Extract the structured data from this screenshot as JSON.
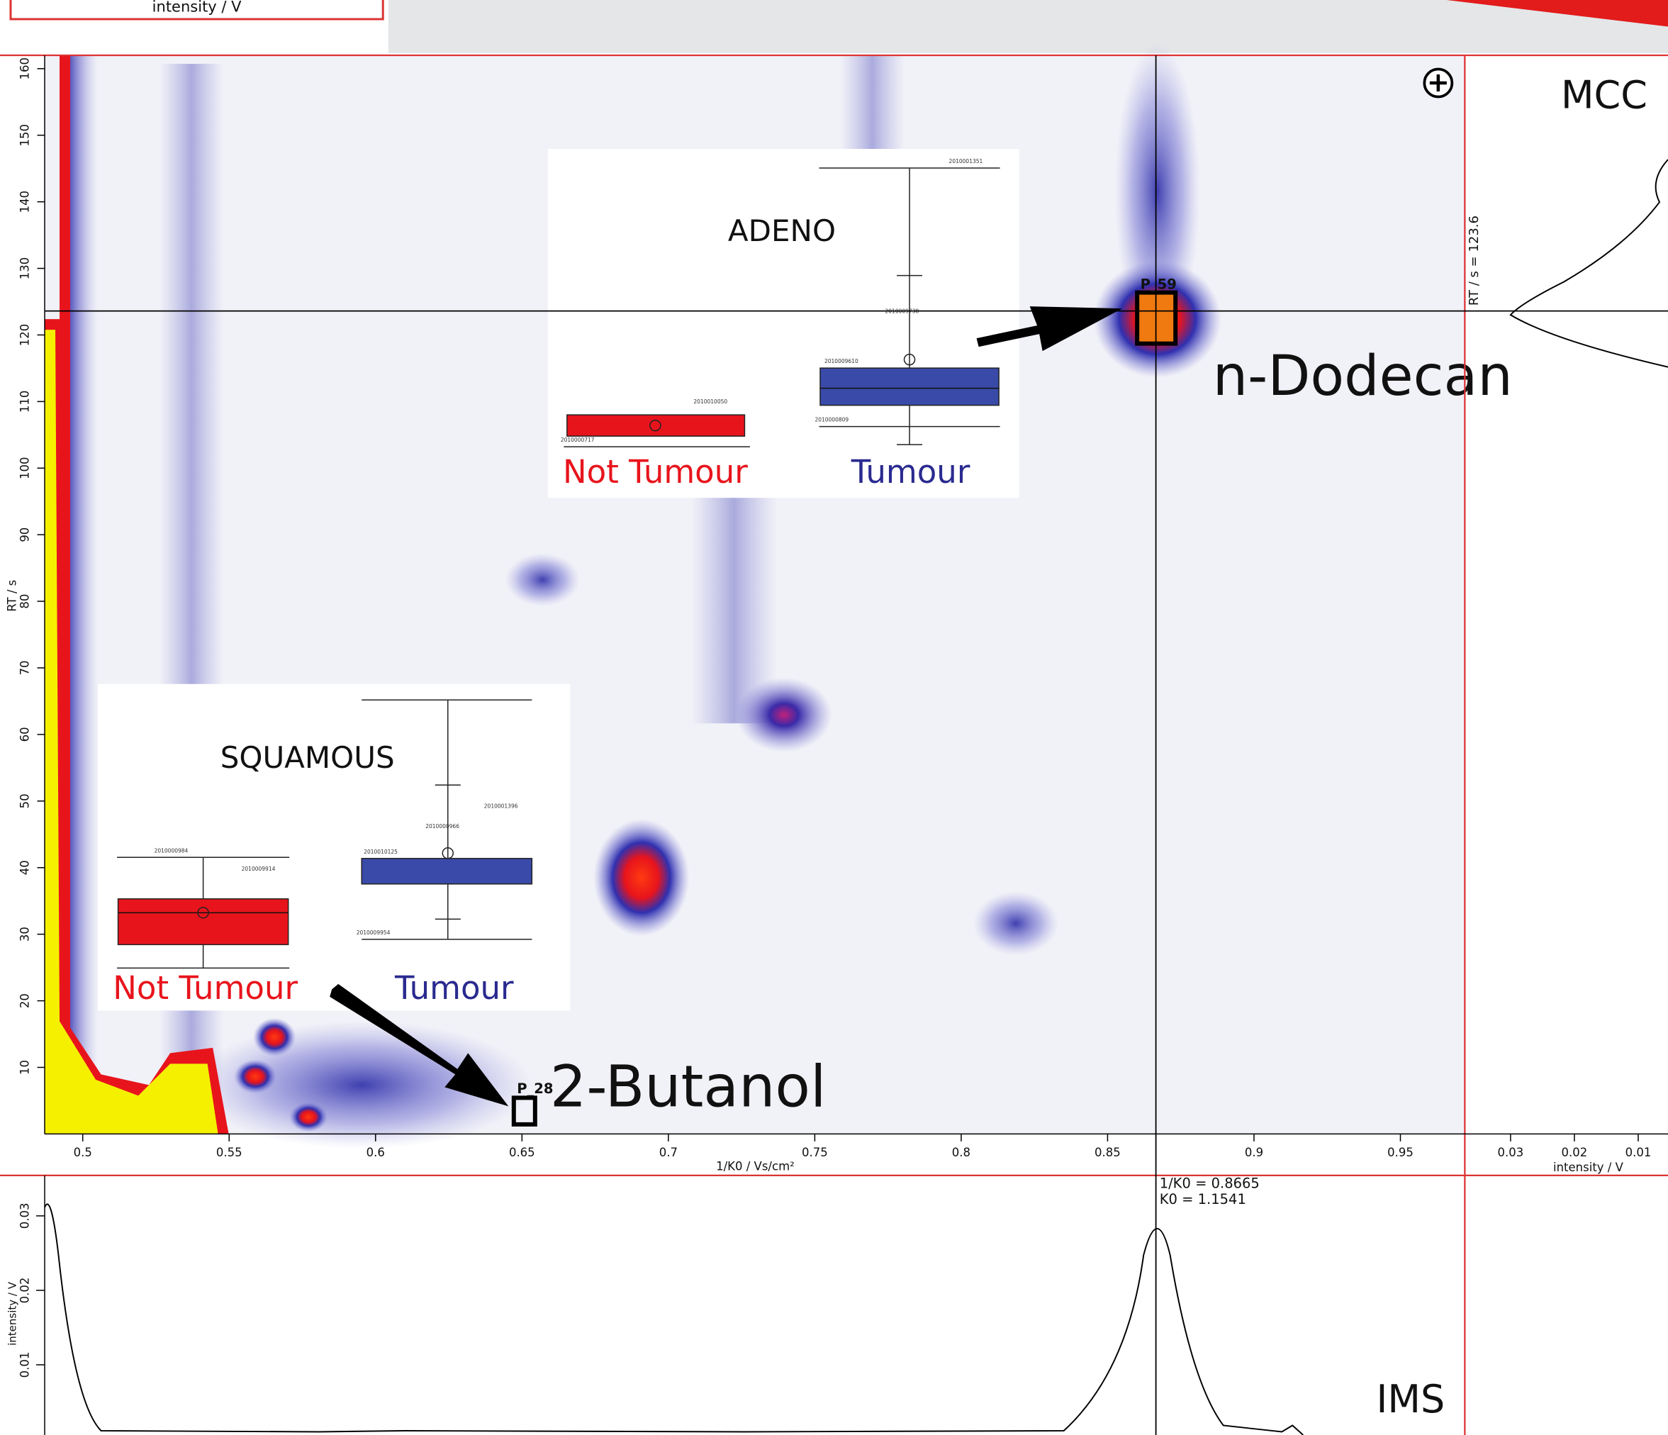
{
  "header": {
    "intensity_label": "intensity / V"
  },
  "main_plot": {
    "x_label": "1/K0 / Vs/cm²",
    "y_label": "RT / s",
    "xlim": [
      0.487,
      0.972
    ],
    "ylim": [
      0,
      162
    ],
    "xticks": [
      0.5,
      0.55,
      0.6,
      0.65,
      0.7,
      0.75,
      0.8,
      0.85,
      0.9,
      0.95
    ],
    "yticks": [
      10,
      20,
      30,
      40,
      50,
      60,
      70,
      80,
      90,
      100,
      110,
      120,
      130,
      140,
      150,
      160
    ],
    "crosshair_x": 0.8665,
    "crosshair_y": 123.6
  },
  "peaks": [
    {
      "label": "P_59",
      "name": "n-Dodecan"
    },
    {
      "label": "P_28",
      "name": "2-Butanol"
    }
  ],
  "ims": {
    "label": "IMS",
    "y_label": "intensity / V",
    "yticks": [
      0.01,
      0.02,
      0.03
    ],
    "annotation": [
      "1/K0 = 0.8665",
      "K0 = 1.1541"
    ]
  },
  "mcc": {
    "label": "MCC",
    "x_label": "intensity / V",
    "xticks": [
      0.03,
      0.02,
      0.01
    ],
    "annotation": "RT / s = 123.6"
  },
  "insets": [
    {
      "title": "ADENO",
      "groups": [
        "Not Tumour",
        "Tumour"
      ],
      "sample_ids": [
        "2010001351",
        "2010009738",
        "2010009610",
        "2010000809",
        "2010010050",
        "2010000717"
      ]
    },
    {
      "title": "SQUAMOUS",
      "groups": [
        "Not Tumour",
        "Tumour"
      ],
      "sample_ids": [
        "2010000984",
        "2010001396",
        "2010000966",
        "2010010125",
        "2010009954",
        "2010009914"
      ]
    }
  ]
}
